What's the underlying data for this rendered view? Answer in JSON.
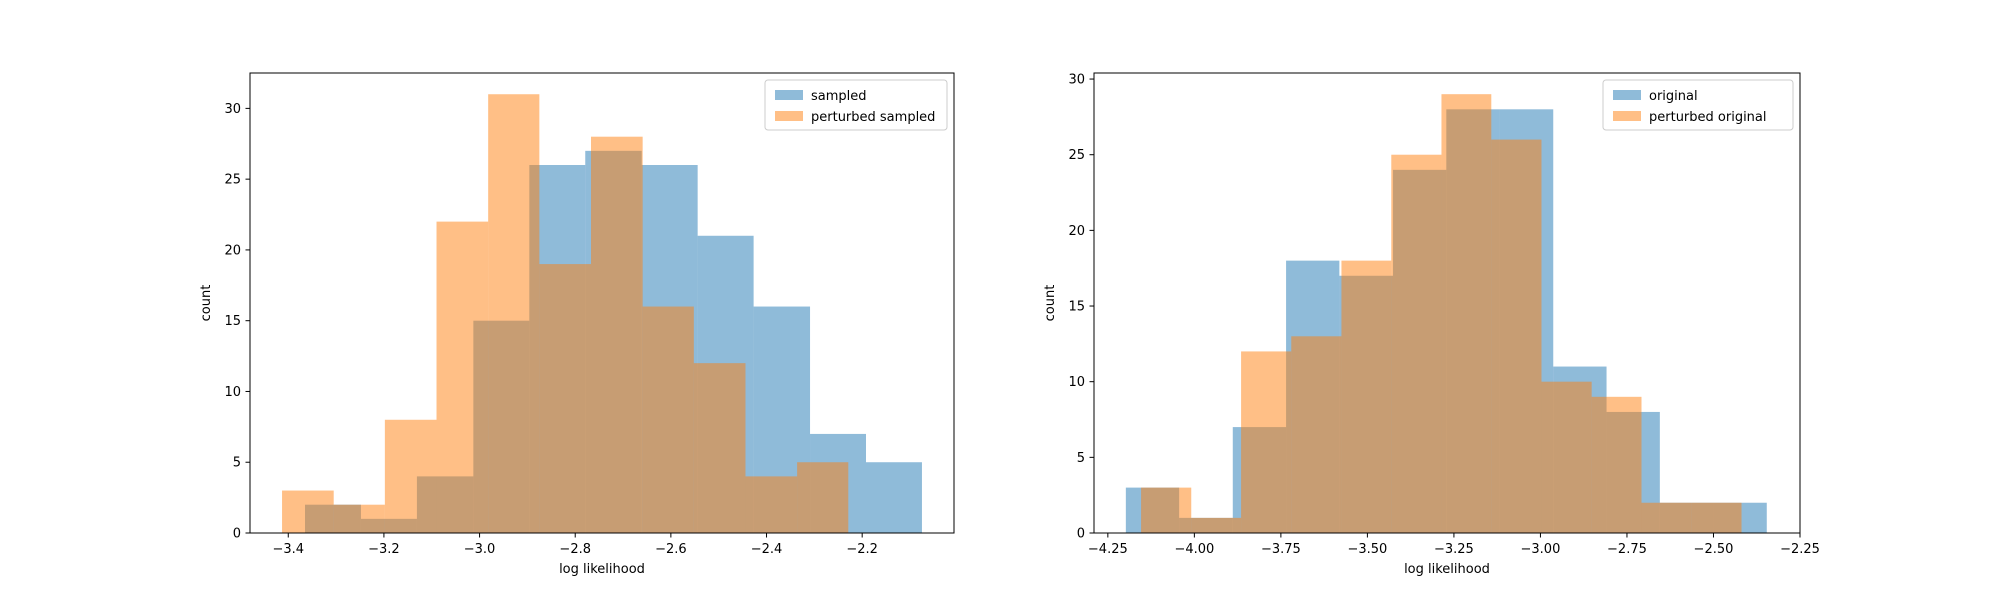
{
  "chart_data": [
    {
      "type": "histogram",
      "xlabel": "log likelihood",
      "ylabel": "count",
      "xlim": [
        -3.48,
        -2.008
      ],
      "ylim": [
        0,
        32.5
      ],
      "xticks": [
        {
          "value": -3.4,
          "label": "−3.4"
        },
        {
          "value": -3.2,
          "label": "−3.2"
        },
        {
          "value": -3.0,
          "label": "−3.0"
        },
        {
          "value": -2.8,
          "label": "−2.8"
        },
        {
          "value": -2.6,
          "label": "−2.6"
        },
        {
          "value": -2.4,
          "label": "−2.4"
        },
        {
          "value": -2.2,
          "label": "−2.2"
        }
      ],
      "yticks": [
        0,
        5,
        10,
        15,
        20,
        25,
        30
      ],
      "legend": "upper right",
      "opacity": 0.5,
      "series": [
        {
          "name": "sampled",
          "color": "#1f77b4",
          "bins": [
            -3.365,
            -3.248,
            -3.131,
            -3.013,
            -2.896,
            -2.779,
            -2.661,
            -2.544,
            -2.427,
            -2.309,
            -2.192,
            -2.075
          ],
          "values": [
            2,
            1,
            4,
            15,
            26,
            27,
            26,
            21,
            16,
            7,
            5
          ]
        },
        {
          "name": "perturbed sampled",
          "color": "#ff7f0e",
          "bins": [
            -3.413,
            -3.305,
            -3.198,
            -3.09,
            -2.982,
            -2.875,
            -2.767,
            -2.659,
            -2.552,
            -2.444,
            -2.336,
            -2.229
          ],
          "values": [
            3,
            2,
            8,
            22,
            31,
            19,
            28,
            16,
            12,
            4,
            5
          ]
        }
      ]
    },
    {
      "type": "histogram",
      "xlabel": "log likelihood",
      "ylabel": "count",
      "xlim": [
        -4.29,
        -2.25
      ],
      "ylim": [
        0,
        30.4
      ],
      "xticks": [
        {
          "value": -4.25,
          "label": "−4.25"
        },
        {
          "value": -4.0,
          "label": "−4.00"
        },
        {
          "value": -3.75,
          "label": "−3.75"
        },
        {
          "value": -3.5,
          "label": "−3.50"
        },
        {
          "value": -3.25,
          "label": "−3.25"
        },
        {
          "value": -3.0,
          "label": "−3.00"
        },
        {
          "value": -2.75,
          "label": "−2.75"
        },
        {
          "value": -2.5,
          "label": "−2.50"
        },
        {
          "value": -2.25,
          "label": "−2.25"
        }
      ],
      "yticks": [
        0,
        5,
        10,
        15,
        20,
        25,
        30
      ],
      "legend": "upper right",
      "opacity": 0.5,
      "series": [
        {
          "name": "original",
          "color": "#1f77b4",
          "bins": [
            -4.198,
            -4.044,
            -3.889,
            -3.735,
            -3.581,
            -3.426,
            -3.272,
            -3.118,
            -2.963,
            -2.809,
            -2.655,
            -2.5,
            -2.346
          ],
          "values": [
            3,
            1,
            7,
            18,
            17,
            24,
            28,
            28,
            11,
            8,
            2,
            2
          ]
        },
        {
          "name": "perturbed original",
          "color": "#ff7f0e",
          "bins": [
            -4.154,
            -4.009,
            -3.865,
            -3.72,
            -3.575,
            -3.431,
            -3.286,
            -3.142,
            -2.997,
            -2.852,
            -2.708,
            -2.563,
            -2.419
          ],
          "values": [
            3,
            1,
            12,
            13,
            18,
            25,
            29,
            26,
            10,
            9,
            2,
            2
          ]
        }
      ]
    }
  ]
}
